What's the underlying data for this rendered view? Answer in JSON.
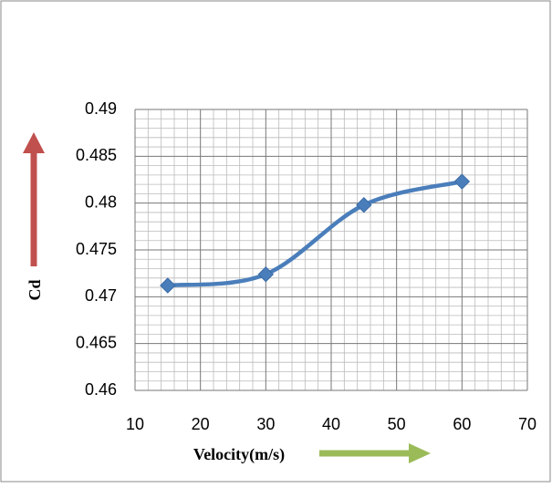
{
  "chart_data": {
    "type": "line",
    "x_label": "Velocity(m/s)",
    "y_label": "Cd",
    "x": [
      15,
      30,
      45,
      60
    ],
    "series": [
      {
        "color": "#4a7ebb",
        "values": [
          0.4712,
          0.4724,
          0.4798,
          0.4823
        ]
      }
    ],
    "xlim": [
      10,
      70
    ],
    "xticks": [
      10,
      20,
      30,
      40,
      50,
      60,
      70
    ],
    "ylim": [
      0.46,
      0.49
    ],
    "yticks": [
      0.46,
      0.465,
      0.47,
      0.475,
      0.48,
      0.485,
      0.49
    ],
    "grid": true,
    "minor_grid": true,
    "smooth": true
  }
}
